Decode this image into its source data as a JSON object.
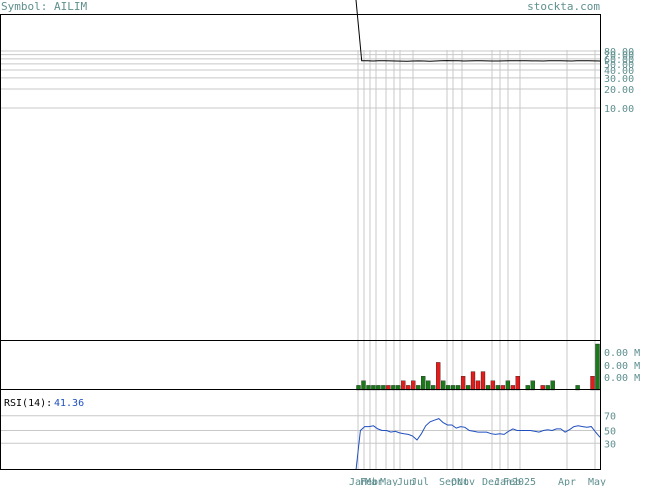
{
  "header": {
    "symbol_text": "Symbol: AILIM",
    "site": "stockta.com"
  },
  "colors": {
    "frame": "#000000",
    "grid": "#c8c8c8",
    "price_line": "#000000",
    "up_volume": "#1a7a1a",
    "down_volume": "#e21b1b",
    "rsi_line": "#1f4fbf",
    "tick_text": "#5f8f8f"
  },
  "chart_data": [
    {
      "type": "line",
      "panel": "price",
      "scale": "log",
      "y_ticks": [
        "80.00",
        "70.00",
        "60.00",
        "50.00",
        "40.00",
        "30.00",
        "20.00",
        "10.00"
      ],
      "x_ticks": [
        "Jan",
        "Feb",
        "Mar",
        "May",
        "Jun",
        "Jul",
        "Sep",
        "Oct",
        "Nov",
        "Dec",
        "Jan",
        "Feb",
        "2025",
        "Apr",
        "May"
      ],
      "values": [
        900,
        56,
        56,
        55.5,
        56,
        56,
        55.8,
        55.6,
        55.4,
        55.2,
        55.5,
        55.8,
        55.5,
        55.2,
        55.6,
        56,
        56.4,
        56.2,
        55.9,
        55.6,
        55.8,
        56,
        55.9,
        55.7,
        55.5,
        55.6,
        55.8,
        56,
        56.2,
        56.1,
        55.9,
        55.8,
        55.7,
        55.6,
        55.9,
        56.1,
        56,
        55.8,
        55.6,
        55.9,
        56.2,
        56,
        55.7,
        55.6
      ]
    },
    {
      "type": "bar",
      "panel": "volume",
      "y_ticks": [
        "0.00 M",
        "0.00 M",
        "0.00 M"
      ],
      "bars": [
        {
          "v": 1,
          "c": "up"
        },
        {
          "v": 2,
          "c": "up"
        },
        {
          "v": 1,
          "c": "up"
        },
        {
          "v": 1,
          "c": "up"
        },
        {
          "v": 1,
          "c": "up"
        },
        {
          "v": 1,
          "c": "up"
        },
        {
          "v": 1,
          "c": "down"
        },
        {
          "v": 1,
          "c": "up"
        },
        {
          "v": 1,
          "c": "up"
        },
        {
          "v": 2,
          "c": "down"
        },
        {
          "v": 1,
          "c": "down"
        },
        {
          "v": 2,
          "c": "down"
        },
        {
          "v": 1,
          "c": "up"
        },
        {
          "v": 3,
          "c": "up"
        },
        {
          "v": 2,
          "c": "up"
        },
        {
          "v": 1,
          "c": "up"
        },
        {
          "v": 6,
          "c": "down"
        },
        {
          "v": 2,
          "c": "up"
        },
        {
          "v": 1,
          "c": "up"
        },
        {
          "v": 1,
          "c": "up"
        },
        {
          "v": 1,
          "c": "up"
        },
        {
          "v": 3,
          "c": "down"
        },
        {
          "v": 1,
          "c": "up"
        },
        {
          "v": 4,
          "c": "down"
        },
        {
          "v": 2,
          "c": "down"
        },
        {
          "v": 4,
          "c": "down"
        },
        {
          "v": 1,
          "c": "up"
        },
        {
          "v": 2,
          "c": "down"
        },
        {
          "v": 1,
          "c": "up"
        },
        {
          "v": 1,
          "c": "down"
        },
        {
          "v": 2,
          "c": "up"
        },
        {
          "v": 1,
          "c": "down"
        },
        {
          "v": 3,
          "c": "down"
        },
        {
          "v": 0,
          "c": "up"
        },
        {
          "v": 1,
          "c": "up"
        },
        {
          "v": 2,
          "c": "up"
        },
        {
          "v": 0,
          "c": "up"
        },
        {
          "v": 1,
          "c": "down"
        },
        {
          "v": 1,
          "c": "up"
        },
        {
          "v": 2,
          "c": "up"
        },
        {
          "v": 0,
          "c": "up"
        },
        {
          "v": 0,
          "c": "up"
        },
        {
          "v": 0,
          "c": "up"
        },
        {
          "v": 0,
          "c": "up"
        },
        {
          "v": 1,
          "c": "up"
        },
        {
          "v": 0,
          "c": "up"
        },
        {
          "v": 0,
          "c": "up"
        },
        {
          "v": 3,
          "c": "down"
        },
        {
          "v": 10,
          "c": "up"
        }
      ]
    },
    {
      "type": "line",
      "panel": "rsi",
      "label": "RSI(14):",
      "current": "41.36",
      "y_ticks": [
        70,
        50,
        30
      ],
      "ylim": [
        0,
        100
      ],
      "values": [
        0,
        50,
        55,
        55,
        56,
        52,
        50,
        50,
        48,
        49,
        47,
        46,
        45,
        43,
        38,
        46,
        56,
        61,
        63,
        65,
        60,
        57,
        57,
        53,
        55,
        54,
        50,
        49,
        48,
        48,
        48,
        46,
        45,
        46,
        45,
        49,
        52,
        50,
        50,
        50,
        50,
        49,
        48,
        50,
        51,
        50,
        52,
        52,
        48,
        51,
        55,
        56,
        55,
        54,
        55,
        48,
        41.36
      ]
    }
  ]
}
